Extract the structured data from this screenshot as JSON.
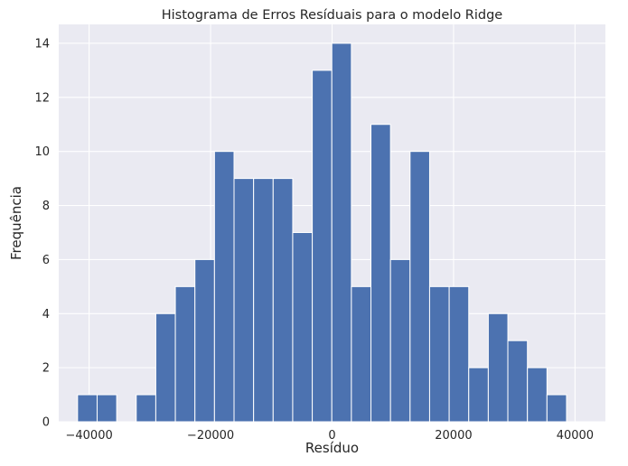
{
  "chart_data": {
    "type": "bar",
    "title": "Histograma de Erros Resíduais para o modelo Ridge",
    "xlabel": "Resíduo",
    "ylabel": "Frequência",
    "xlim": [
      -45000,
      45000
    ],
    "ylim": [
      0,
      14.7
    ],
    "xticks": [
      -40000,
      -20000,
      0,
      20000,
      40000
    ],
    "yticks": [
      0,
      2,
      4,
      6,
      8,
      10,
      12,
      14
    ],
    "bins": {
      "start": -41900,
      "width": 3220,
      "counts": [
        1,
        1,
        0,
        1,
        4,
        5,
        6,
        10,
        9,
        9,
        9,
        7,
        13,
        14,
        5,
        11,
        6,
        10,
        5,
        5,
        2,
        4,
        3,
        2,
        1
      ]
    },
    "grid": true,
    "legend": "none",
    "colors": {
      "bar": "#4c72b0",
      "bar_edge": "#ffffff",
      "plot_background": "#eaeaf2",
      "grid": "#ffffff",
      "text": "#262626"
    }
  }
}
